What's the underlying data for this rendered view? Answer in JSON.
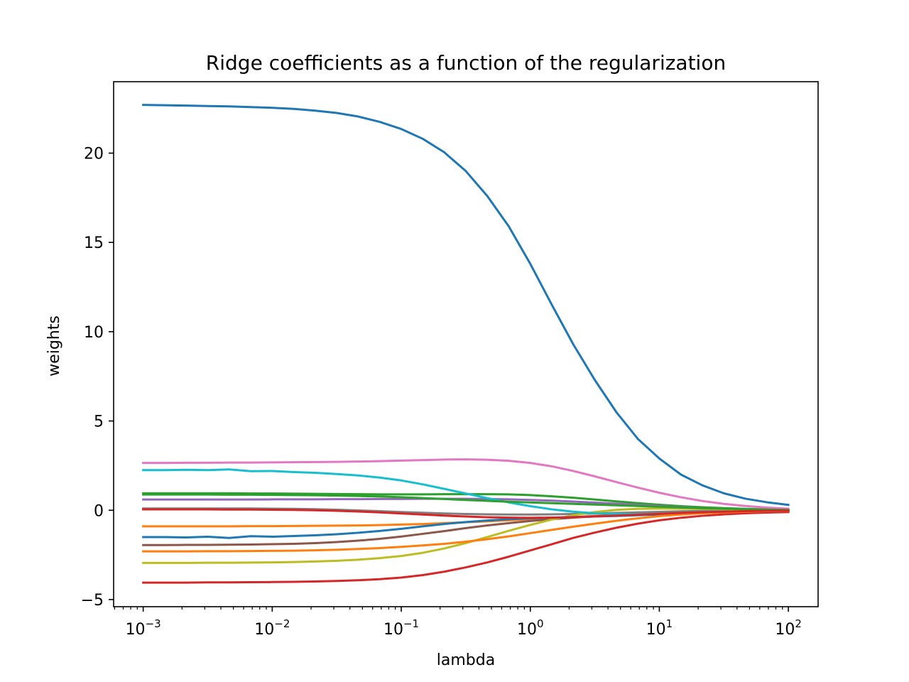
{
  "chart_data": {
    "type": "line",
    "title": "Ridge coefficients as a function of the regularization",
    "xlabel": "lambda",
    "ylabel": "weights",
    "x_scale": "log",
    "xlim": [
      0.00059,
      170
    ],
    "ylim": [
      -5.4,
      24.0
    ],
    "x_ticks": [
      {
        "value": 0.001,
        "base": "10",
        "exp": "−3"
      },
      {
        "value": 0.01,
        "base": "10",
        "exp": "−2"
      },
      {
        "value": 0.1,
        "base": "10",
        "exp": "−1"
      },
      {
        "value": 1,
        "base": "10",
        "exp": "0"
      },
      {
        "value": 10,
        "base": "10",
        "exp": "1"
      },
      {
        "value": 100,
        "base": "10",
        "exp": "2"
      }
    ],
    "y_ticks": [
      {
        "value": -5,
        "label": "−5"
      },
      {
        "value": 0,
        "label": "0"
      },
      {
        "value": 5,
        "label": "5"
      },
      {
        "value": 10,
        "label": "10"
      },
      {
        "value": 15,
        "label": "15"
      },
      {
        "value": 20,
        "label": "20"
      }
    ],
    "grid": false,
    "x": [
      0.001,
      0.00147,
      0.00215,
      0.00316,
      0.00464,
      0.00681,
      0.01,
      0.0147,
      0.0215,
      0.0316,
      0.0464,
      0.0681,
      0.1,
      0.147,
      0.215,
      0.316,
      0.464,
      0.681,
      1.0,
      1.47,
      2.15,
      3.16,
      4.64,
      6.81,
      10.0,
      14.7,
      21.5,
      31.6,
      46.4,
      68.1,
      100
    ],
    "series": [
      {
        "color": "#1f77b4",
        "values": [
          22.7,
          22.68,
          22.66,
          22.64,
          22.62,
          22.58,
          22.54,
          22.48,
          22.38,
          22.25,
          22.05,
          21.75,
          21.35,
          20.8,
          20.05,
          19.0,
          17.6,
          15.9,
          13.8,
          11.5,
          9.3,
          7.3,
          5.5,
          4.0,
          2.9,
          2.0,
          1.4,
          0.95,
          0.65,
          0.45,
          0.3
        ]
      },
      {
        "color": "#ff7f0e",
        "values": [
          -0.9,
          -0.9,
          -0.9,
          -0.9,
          -0.9,
          -0.89,
          -0.89,
          -0.88,
          -0.87,
          -0.86,
          -0.85,
          -0.83,
          -0.8,
          -0.77,
          -0.72,
          -0.67,
          -0.62,
          -0.56,
          -0.5,
          -0.44,
          -0.38,
          -0.32,
          -0.27,
          -0.22,
          -0.17,
          -0.13,
          -0.09,
          -0.06,
          -0.04,
          -0.02,
          -0.01
        ]
      },
      {
        "color": "#2ca02c",
        "values": [
          0.95,
          0.95,
          0.95,
          0.95,
          0.95,
          0.94,
          0.94,
          0.93,
          0.92,
          0.91,
          0.9,
          0.89,
          0.89,
          0.89,
          0.9,
          0.9,
          0.9,
          0.89,
          0.85,
          0.78,
          0.7,
          0.6,
          0.5,
          0.4,
          0.31,
          0.23,
          0.17,
          0.12,
          0.08,
          0.05,
          0.03
        ]
      },
      {
        "color": "#d62728",
        "values": [
          -4.05,
          -4.05,
          -4.05,
          -4.04,
          -4.04,
          -4.03,
          -4.02,
          -4.01,
          -3.99,
          -3.96,
          -3.92,
          -3.86,
          -3.77,
          -3.63,
          -3.44,
          -3.2,
          -2.92,
          -2.6,
          -2.25,
          -1.9,
          -1.55,
          -1.25,
          -0.98,
          -0.75,
          -0.56,
          -0.42,
          -0.31,
          -0.23,
          -0.17,
          -0.13,
          -0.1
        ]
      },
      {
        "color": "#9467bd",
        "values": [
          0.6,
          0.6,
          0.6,
          0.6,
          0.6,
          0.6,
          0.61,
          0.61,
          0.61,
          0.62,
          0.62,
          0.63,
          0.63,
          0.64,
          0.64,
          0.64,
          0.63,
          0.61,
          0.58,
          0.54,
          0.49,
          0.43,
          0.37,
          0.3,
          0.24,
          0.18,
          0.13,
          0.09,
          0.06,
          0.04,
          0.02
        ]
      },
      {
        "color": "#8c564b",
        "values": [
          -1.95,
          -1.95,
          -1.94,
          -1.94,
          -1.93,
          -1.92,
          -1.9,
          -1.88,
          -1.84,
          -1.78,
          -1.7,
          -1.6,
          -1.47,
          -1.32,
          -1.17,
          -1.0,
          -0.85,
          -0.72,
          -0.6,
          -0.5,
          -0.41,
          -0.33,
          -0.26,
          -0.2,
          -0.15,
          -0.11,
          -0.08,
          -0.06,
          -0.04,
          -0.03,
          -0.02
        ]
      },
      {
        "color": "#e377c2",
        "values": [
          2.65,
          2.65,
          2.66,
          2.66,
          2.67,
          2.67,
          2.68,
          2.69,
          2.7,
          2.71,
          2.73,
          2.75,
          2.78,
          2.81,
          2.84,
          2.85,
          2.83,
          2.77,
          2.65,
          2.46,
          2.2,
          1.9,
          1.58,
          1.27,
          0.98,
          0.73,
          0.52,
          0.36,
          0.24,
          0.15,
          0.09
        ]
      },
      {
        "color": "#7f7f7f",
        "values": [
          0.1,
          0.1,
          0.1,
          0.1,
          0.1,
          0.1,
          0.09,
          0.08,
          0.06,
          0.03,
          -0.01,
          -0.05,
          -0.1,
          -0.14,
          -0.18,
          -0.21,
          -0.23,
          -0.24,
          -0.24,
          -0.23,
          -0.21,
          -0.18,
          -0.15,
          -0.12,
          -0.09,
          -0.06,
          -0.04,
          -0.03,
          -0.02,
          -0.01,
          0.0
        ]
      },
      {
        "color": "#bcbd22",
        "values": [
          -2.95,
          -2.95,
          -2.95,
          -2.94,
          -2.94,
          -2.93,
          -2.92,
          -2.9,
          -2.87,
          -2.83,
          -2.77,
          -2.68,
          -2.56,
          -2.38,
          -2.14,
          -1.84,
          -1.5,
          -1.15,
          -0.82,
          -0.52,
          -0.28,
          -0.1,
          0.02,
          0.08,
          0.1,
          0.09,
          0.08,
          0.06,
          0.04,
          0.02,
          0.01
        ]
      },
      {
        "color": "#17becf",
        "values": [
          2.25,
          2.25,
          2.27,
          2.25,
          2.29,
          2.19,
          2.2,
          2.14,
          2.1,
          2.03,
          1.95,
          1.83,
          1.67,
          1.45,
          1.2,
          0.94,
          0.68,
          0.44,
          0.23,
          0.05,
          -0.08,
          -0.17,
          -0.21,
          -0.22,
          -0.2,
          -0.17,
          -0.13,
          -0.09,
          -0.06,
          -0.04,
          -0.02
        ]
      },
      {
        "color": "#1f77b4",
        "values": [
          -1.5,
          -1.5,
          -1.52,
          -1.48,
          -1.55,
          -1.45,
          -1.48,
          -1.44,
          -1.4,
          -1.34,
          -1.26,
          -1.16,
          -1.04,
          -0.9,
          -0.77,
          -0.66,
          -0.57,
          -0.5,
          -0.45,
          -0.41,
          -0.38,
          -0.35,
          -0.32,
          -0.28,
          -0.24,
          -0.2,
          -0.16,
          -0.12,
          -0.08,
          -0.05,
          -0.03
        ]
      },
      {
        "color": "#ff7f0e",
        "values": [
          -2.3,
          -2.3,
          -2.3,
          -2.29,
          -2.29,
          -2.28,
          -2.27,
          -2.26,
          -2.24,
          -2.21,
          -2.17,
          -2.12,
          -2.05,
          -1.97,
          -1.88,
          -1.76,
          -1.62,
          -1.46,
          -1.28,
          -1.1,
          -0.92,
          -0.75,
          -0.59,
          -0.45,
          -0.33,
          -0.24,
          -0.17,
          -0.12,
          -0.08,
          -0.05,
          -0.03
        ]
      },
      {
        "color": "#2ca02c",
        "values": [
          0.88,
          0.88,
          0.88,
          0.88,
          0.87,
          0.87,
          0.86,
          0.85,
          0.84,
          0.82,
          0.8,
          0.77,
          0.73,
          0.68,
          0.63,
          0.58,
          0.53,
          0.48,
          0.44,
          0.4,
          0.36,
          0.32,
          0.28,
          0.24,
          0.2,
          0.16,
          0.12,
          0.09,
          0.06,
          0.04,
          0.02
        ]
      },
      {
        "color": "#d62728",
        "values": [
          0.05,
          0.05,
          0.05,
          0.05,
          0.04,
          0.04,
          0.03,
          0.02,
          0.0,
          -0.03,
          -0.07,
          -0.12,
          -0.18,
          -0.24,
          -0.3,
          -0.35,
          -0.39,
          -0.41,
          -0.42,
          -0.41,
          -0.39,
          -0.35,
          -0.3,
          -0.25,
          -0.2,
          -0.15,
          -0.11,
          -0.08,
          -0.05,
          -0.03,
          -0.02
        ]
      }
    ]
  }
}
